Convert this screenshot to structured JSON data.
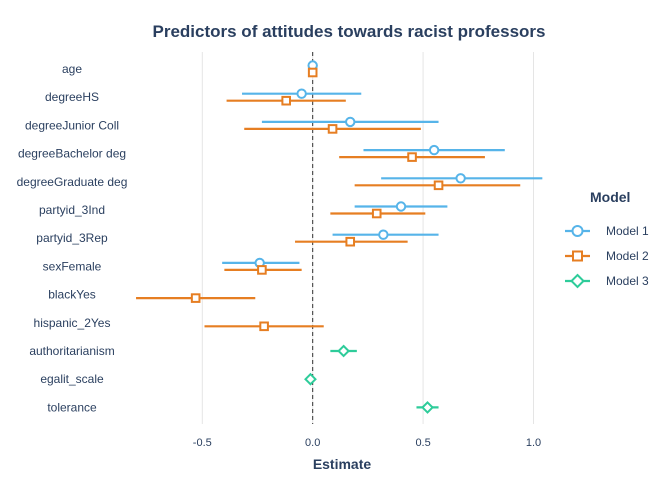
{
  "chart_data": {
    "type": "scatter",
    "subtype": "coefficient-plot",
    "title": "Predictors of attitudes towards racist professors",
    "xlabel": "Estimate",
    "ylabel": "",
    "xlim": [
      -0.85,
      1.12
    ],
    "x_ticks": [
      -0.5,
      0.0,
      0.5,
      1.0
    ],
    "x_tick_labels": [
      "-0.5",
      "0.0",
      "0.5",
      "1.0"
    ],
    "reference_line": 0,
    "grid": true,
    "categories": [
      "age",
      "degreeHS",
      "degreeJunior Coll",
      "degreeBachelor deg",
      "degreeGraduate deg",
      "partyid_3Ind",
      "partyid_3Rep",
      "sexFemale",
      "blackYes",
      "hispanic_2Yes",
      "authoritarianism",
      "egalit_scale",
      "tolerance"
    ],
    "legend": {
      "title": "Model",
      "position": "right"
    },
    "series": [
      {
        "name": "Model 1",
        "color": "#56b4e9",
        "marker": "circle",
        "points": [
          {
            "term": "age",
            "estimate": 0.0,
            "low": -0.005,
            "high": 0.005
          },
          {
            "term": "degreeHS",
            "estimate": -0.05,
            "low": -0.32,
            "high": 0.22
          },
          {
            "term": "degreeJunior Coll",
            "estimate": 0.17,
            "low": -0.23,
            "high": 0.57
          },
          {
            "term": "degreeBachelor deg",
            "estimate": 0.55,
            "low": 0.23,
            "high": 0.87
          },
          {
            "term": "degreeGraduate deg",
            "estimate": 0.67,
            "low": 0.31,
            "high": 1.04
          },
          {
            "term": "partyid_3Ind",
            "estimate": 0.4,
            "low": 0.19,
            "high": 0.61
          },
          {
            "term": "partyid_3Rep",
            "estimate": 0.32,
            "low": 0.09,
            "high": 0.57
          },
          {
            "term": "sexFemale",
            "estimate": -0.24,
            "low": -0.41,
            "high": -0.06
          }
        ]
      },
      {
        "name": "Model 2",
        "color": "#e67e22",
        "marker": "square",
        "points": [
          {
            "term": "age",
            "estimate": 0.0,
            "low": -0.005,
            "high": 0.005
          },
          {
            "term": "degreeHS",
            "estimate": -0.12,
            "low": -0.39,
            "high": 0.15
          },
          {
            "term": "degreeJunior Coll",
            "estimate": 0.09,
            "low": -0.31,
            "high": 0.49
          },
          {
            "term": "degreeBachelor deg",
            "estimate": 0.45,
            "low": 0.12,
            "high": 0.78
          },
          {
            "term": "degreeGraduate deg",
            "estimate": 0.57,
            "low": 0.19,
            "high": 0.94
          },
          {
            "term": "partyid_3Ind",
            "estimate": 0.29,
            "low": 0.08,
            "high": 0.51
          },
          {
            "term": "partyid_3Rep",
            "estimate": 0.17,
            "low": -0.08,
            "high": 0.43
          },
          {
            "term": "sexFemale",
            "estimate": -0.23,
            "low": -0.4,
            "high": -0.05
          },
          {
            "term": "blackYes",
            "estimate": -0.53,
            "low": -0.8,
            "high": -0.26
          },
          {
            "term": "hispanic_2Yes",
            "estimate": -0.22,
            "low": -0.49,
            "high": 0.05
          }
        ]
      },
      {
        "name": "Model 3",
        "color": "#2ecc9a",
        "marker": "diamond",
        "points": [
          {
            "term": "authoritarianism",
            "estimate": 0.14,
            "low": 0.08,
            "high": 0.2
          },
          {
            "term": "egalit_scale",
            "estimate": -0.01,
            "low": -0.02,
            "high": 0.0
          },
          {
            "term": "tolerance",
            "estimate": 0.52,
            "low": 0.47,
            "high": 0.57
          }
        ]
      }
    ]
  }
}
